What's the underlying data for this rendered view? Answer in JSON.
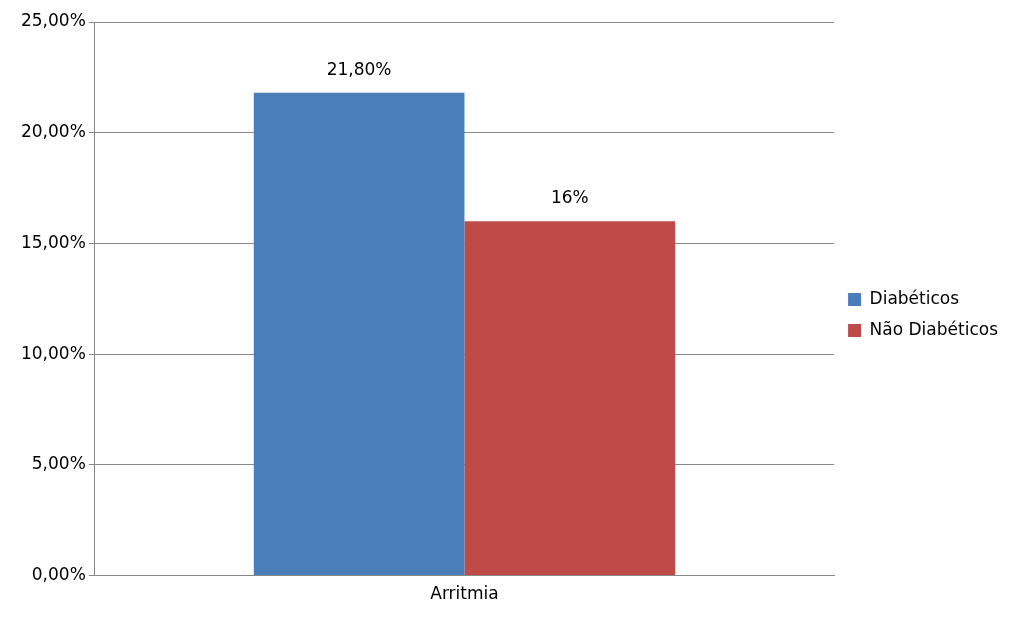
{
  "chart_data": {
    "type": "bar",
    "categories": [
      "Arritmia"
    ],
    "series": [
      {
        "name": "Diabéticos",
        "color": "#4a7ebb",
        "values": [
          21.8
        ],
        "value_labels": [
          "21,80%"
        ]
      },
      {
        "name": "Não Diabéticos",
        "color": "#be4b48",
        "values": [
          16
        ],
        "value_labels": [
          "16%"
        ]
      }
    ],
    "ylim": [
      0,
      25
    ],
    "yticks": [
      {
        "value": 0,
        "label": "0,00%"
      },
      {
        "value": 5,
        "label": "5,00%"
      },
      {
        "value": 10,
        "label": "10,00%"
      },
      {
        "value": 15,
        "label": "15,00%"
      },
      {
        "value": 20,
        "label": "20,00%"
      },
      {
        "value": 25,
        "label": "25,00%"
      }
    ],
    "grid": "y",
    "legend": "right"
  }
}
